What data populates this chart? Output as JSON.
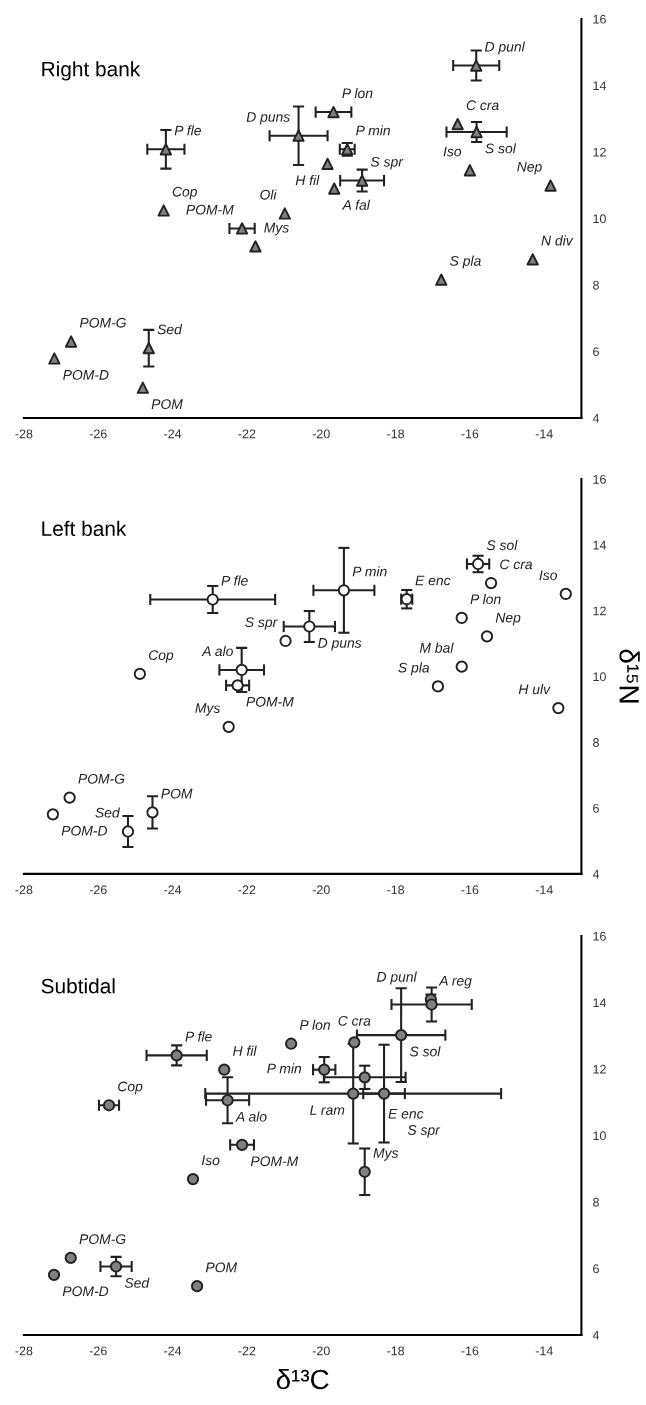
{
  "chart_data": [
    {
      "type": "scatter",
      "title": "Right bank",
      "marker": "triangle",
      "xlim": [
        -28,
        -13
      ],
      "ylim": [
        4,
        16
      ],
      "xticks": [
        -28,
        -26,
        -24,
        -22,
        -20,
        -18,
        -16,
        -14
      ],
      "yticks": [
        4,
        6,
        8,
        10,
        12,
        14,
        16
      ],
      "series": [
        {
          "color": "#808080",
          "x": [
            -15.83,
            -19.67,
            -24.18,
            -20.61,
            -19.3,
            -16.33,
            -15.82,
            -19.83,
            -18.9,
            -19.65,
            -16.0,
            -13.83,
            -24.24,
            -20.98,
            -22.13,
            -21.77,
            -14.31,
            -16.77,
            -26.73,
            -27.18,
            -24.64,
            -24.8
          ],
          "values": [
            14.6,
            13.2,
            12.08,
            12.49,
            12.08,
            12.84,
            12.6,
            11.64,
            11.14,
            10.9,
            11.45,
            10.99,
            10.24,
            10.15,
            9.7,
            9.16,
            8.77,
            8.16,
            6.3,
            5.79,
            6.1,
            4.91
          ],
          "errors": [
            0.45,
            null,
            0.58,
            0.88,
            0.19,
            null,
            0.3,
            null,
            0.33,
            null,
            null,
            null,
            null,
            null,
            null,
            null,
            null,
            null,
            null,
            null,
            0.55,
            null
          ],
          "xerrors": [
            0.62,
            0.48,
            0.5,
            0.78,
            0.2,
            null,
            0.81,
            null,
            0.59,
            null,
            null,
            null,
            null,
            null,
            0.34,
            null,
            null,
            null,
            null,
            null,
            null,
            null
          ]
        }
      ],
      "annotations": [
        {
          "text": "D punl",
          "x": -15.83,
          "y": 14.6
        },
        {
          "text": "P lon",
          "x": -19.67,
          "y": 13.2
        },
        {
          "text": "P fle",
          "x": -24.18,
          "y": 12.08
        },
        {
          "text": "D puns",
          "x": -20.61,
          "y": 12.49
        },
        {
          "text": "P min",
          "x": -19.3,
          "y": 12.08
        },
        {
          "text": "C cra",
          "x": -16.33,
          "y": 12.84
        },
        {
          "text": "S sol",
          "x": -15.82,
          "y": 12.6
        },
        {
          "text": "H fil",
          "x": -19.83,
          "y": 11.64
        },
        {
          "text": "S spr",
          "x": -18.9,
          "y": 11.14
        },
        {
          "text": "A fal",
          "x": -19.65,
          "y": 10.9
        },
        {
          "text": "Iso",
          "x": -16.0,
          "y": 11.45
        },
        {
          "text": "Nep",
          "x": -13.83,
          "y": 10.99
        },
        {
          "text": "Cop",
          "x": -24.24,
          "y": 10.24
        },
        {
          "text": "Oli",
          "x": -20.98,
          "y": 10.15
        },
        {
          "text": "POM-M",
          "x": -22.13,
          "y": 9.7
        },
        {
          "text": "Mys",
          "x": -21.77,
          "y": 9.16
        },
        {
          "text": "N div",
          "x": -14.31,
          "y": 8.77
        },
        {
          "text": "S pla",
          "x": -16.77,
          "y": 8.16
        },
        {
          "text": "POM-G",
          "x": -26.73,
          "y": 6.3
        },
        {
          "text": "POM-D",
          "x": -27.18,
          "y": 5.79
        },
        {
          "text": "Sed",
          "x": -24.64,
          "y": 6.1
        },
        {
          "text": "POM",
          "x": -24.8,
          "y": 4.91
        }
      ]
    },
    {
      "type": "scatter",
      "title": "Left bank",
      "ylabel": "δ¹⁵N",
      "marker": "circle",
      "xlim": [
        -28,
        -13
      ],
      "ylim": [
        4,
        16
      ],
      "xticks": [
        -28,
        -26,
        -24,
        -22,
        -20,
        -18,
        -16,
        -14
      ],
      "yticks": [
        4,
        6,
        8,
        10,
        12,
        14,
        16
      ],
      "series": [
        {
          "color": "#ffffff",
          "x": [
            -15.78,
            -15.43,
            -13.42,
            -19.39,
            -22.92,
            -17.7,
            -20.32,
            -16.22,
            -20.96,
            -15.54,
            -24.88,
            -22.14,
            -22.25,
            -16.22,
            -16.86,
            -13.62,
            -22.49,
            -26.77,
            -27.22,
            -24.54,
            -25.2
          ],
          "values": [
            13.42,
            12.84,
            12.51,
            12.62,
            12.34,
            12.35,
            11.52,
            11.78,
            11.08,
            11.22,
            10.08,
            10.2,
            9.73,
            10.3,
            9.7,
            9.04,
            8.47,
            6.32,
            5.81,
            5.87,
            5.29
          ],
          "errors": [
            0.25,
            null,
            null,
            1.29,
            0.41,
            0.28,
            0.47,
            null,
            null,
            null,
            null,
            0.67,
            null,
            null,
            null,
            null,
            null,
            null,
            null,
            0.49,
            0.47
          ],
          "xerrors": [
            0.3,
            null,
            null,
            0.82,
            1.68,
            0.15,
            0.69,
            null,
            null,
            null,
            null,
            0.6,
            0.31,
            null,
            null,
            null,
            null,
            null,
            null,
            null,
            null
          ]
        }
      ],
      "annotations": [
        {
          "text": "S sol",
          "x": -15.78,
          "y": 13.42
        },
        {
          "text": "C cra",
          "x": -15.43,
          "y": 12.84
        },
        {
          "text": "Iso",
          "x": -13.42,
          "y": 12.51
        },
        {
          "text": "P min",
          "x": -19.39,
          "y": 12.62
        },
        {
          "text": "P fle",
          "x": -22.92,
          "y": 12.34
        },
        {
          "text": "E enc",
          "x": -17.7,
          "y": 12.35
        },
        {
          "text": "D puns",
          "x": -20.32,
          "y": 11.52
        },
        {
          "text": "P lon",
          "x": -16.22,
          "y": 11.78
        },
        {
          "text": "S spr",
          "x": -20.96,
          "y": 11.08
        },
        {
          "text": "Nep",
          "x": -15.54,
          "y": 11.22
        },
        {
          "text": "Cop",
          "x": -24.88,
          "y": 10.08
        },
        {
          "text": "A alo",
          "x": -22.14,
          "y": 10.2
        },
        {
          "text": "POM-M",
          "x": -22.25,
          "y": 9.73
        },
        {
          "text": "M bal",
          "x": -16.22,
          "y": 10.3
        },
        {
          "text": "S pla",
          "x": -16.86,
          "y": 9.7
        },
        {
          "text": "H ulv",
          "x": -13.62,
          "y": 9.04
        },
        {
          "text": "Mys",
          "x": -22.49,
          "y": 8.47
        },
        {
          "text": "POM-G",
          "x": -26.77,
          "y": 6.32
        },
        {
          "text": "POM-D",
          "x": -27.22,
          "y": 5.81
        },
        {
          "text": "POM",
          "x": -24.54,
          "y": 5.87
        },
        {
          "text": "Sed",
          "x": -25.2,
          "y": 5.29
        }
      ]
    },
    {
      "type": "scatter",
      "title": "Subtidal",
      "xlabel": "δ¹³C",
      "marker": "circle",
      "xlim": [
        -28,
        -13
      ],
      "ylim": [
        4,
        16
      ],
      "xticks": [
        -28,
        -26,
        -24,
        -22,
        -20,
        -18,
        -16,
        -14
      ],
      "yticks": [
        4,
        6,
        8,
        10,
        12,
        14,
        16
      ],
      "series": [
        {
          "color": "#808080",
          "x": [
            -17.05,
            -17.03,
            -17.85,
            -20.81,
            -19.11,
            -23.89,
            -22.61,
            -19.92,
            -18.83,
            -19.14,
            -18.31,
            -22.52,
            -25.71,
            -22.13,
            -18.83,
            -23.45,
            -26.74,
            -27.19,
            -25.52,
            -23.34
          ],
          "values": [
            14.09,
            13.94,
            13.02,
            12.76,
            12.8,
            12.41,
            11.98,
            11.98,
            11.75,
            11.26,
            11.26,
            11.06,
            10.91,
            9.72,
            8.91,
            8.69,
            6.32,
            5.81,
            6.06,
            5.47
          ],
          "errors": [
            0.15,
            0.51,
            1.41,
            null,
            null,
            0.3,
            null,
            0.38,
            0.35,
            1.5,
            1.47,
            0.69,
            null,
            null,
            0.7,
            null,
            null,
            null,
            0.29,
            null
          ],
          "xerrors": [
            null,
            1.08,
            1.19,
            null,
            null,
            0.81,
            null,
            0.3,
            1.1,
            3.98,
            0.56,
            0.58,
            0.27,
            0.32,
            null,
            null,
            null,
            null,
            0.42,
            null
          ]
        }
      ],
      "annotations": [
        {
          "text": "A reg",
          "x": -17.05,
          "y": 14.09
        },
        {
          "text": "D punl",
          "x": -17.03,
          "y": 13.94
        },
        {
          "text": "S sol",
          "x": -17.85,
          "y": 13.02
        },
        {
          "text": "P lon",
          "x": -20.81,
          "y": 12.76
        },
        {
          "text": "C cra",
          "x": -19.11,
          "y": 12.8
        },
        {
          "text": "P fle",
          "x": -23.89,
          "y": 12.41
        },
        {
          "text": "H fil",
          "x": -22.61,
          "y": 11.98
        },
        {
          "text": "P min",
          "x": -19.92,
          "y": 11.98
        },
        {
          "text": "E enc",
          "x": -18.83,
          "y": 11.75
        },
        {
          "text": "L ram",
          "x": -19.14,
          "y": 11.26
        },
        {
          "text": "S spr",
          "x": -18.31,
          "y": 11.26
        },
        {
          "text": "A alo",
          "x": -22.52,
          "y": 11.06
        },
        {
          "text": "Cop",
          "x": -25.71,
          "y": 10.91
        },
        {
          "text": "POM-M",
          "x": -22.13,
          "y": 9.72
        },
        {
          "text": "Mys",
          "x": -18.83,
          "y": 8.91
        },
        {
          "text": "Iso",
          "x": -23.45,
          "y": 8.69
        },
        {
          "text": "POM-G",
          "x": -26.74,
          "y": 6.32
        },
        {
          "text": "POM-D",
          "x": -27.19,
          "y": 5.81
        },
        {
          "text": "Sed",
          "x": -25.52,
          "y": 6.06
        },
        {
          "text": "POM",
          "x": -23.34,
          "y": 5.47
        }
      ]
    }
  ]
}
